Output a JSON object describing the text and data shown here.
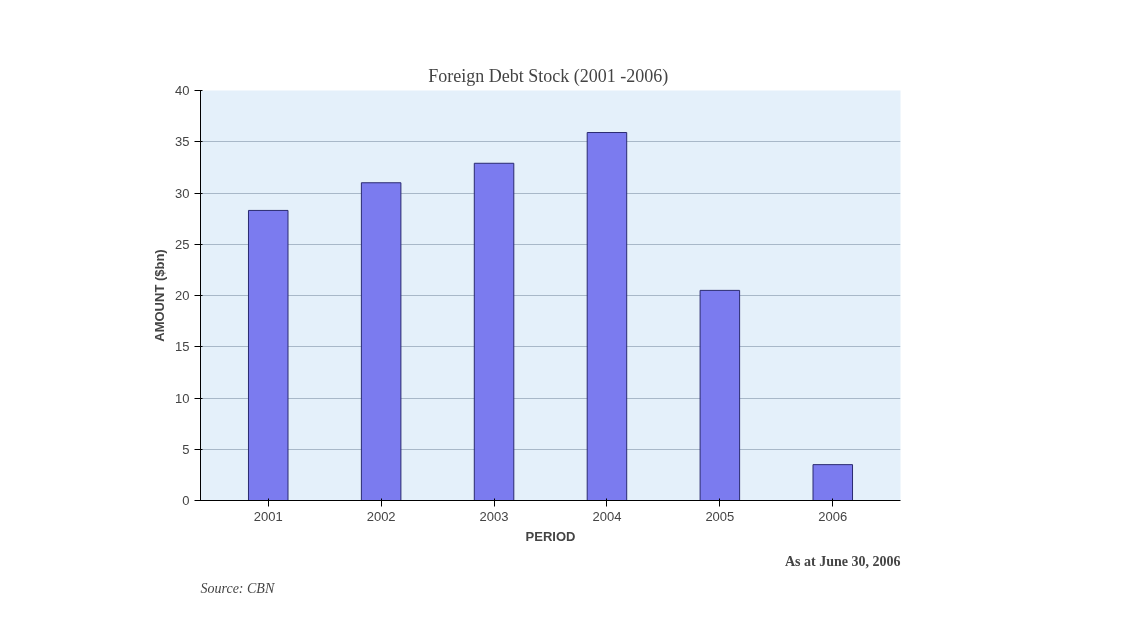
{
  "chart_data": {
    "type": "bar",
    "title": "Foreign Debt Stock  (2001 -2006)",
    "xlabel": "PERIOD",
    "ylabel": "AMOUNT ($bn)",
    "categories": [
      "2001",
      "2002",
      "2003",
      "2004",
      "2005",
      "2006"
    ],
    "values": [
      28.3,
      31.0,
      32.9,
      35.9,
      20.5,
      3.5
    ],
    "color": "#7b7bef",
    "ylim": [
      0,
      40
    ],
    "yticks": [
      0,
      5,
      10,
      15,
      20,
      25,
      30,
      35,
      40
    ],
    "grid": "y",
    "annotations": [
      "As at June 30, 2006",
      "Source: CBN"
    ]
  }
}
